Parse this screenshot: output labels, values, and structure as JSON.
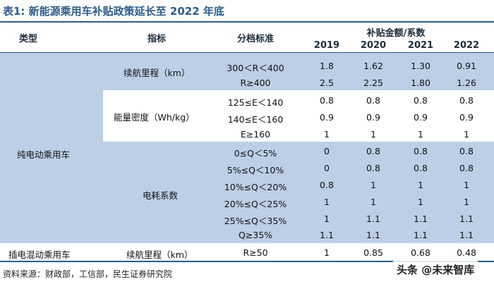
{
  "title": "表1: 新能源乘用车补贴政策延长至 2022 年底",
  "headers": {
    "type": "类型",
    "indicator": "指标",
    "grading": "分档标准",
    "subsidy": "补贴金额/系数",
    "years": [
      "2019",
      "2020",
      "2021",
      "2022"
    ]
  },
  "categories": {
    "bev": "纯电动乘用车",
    "phev": "插电混动乘用车"
  },
  "indicators": {
    "range": "续航里程（km）",
    "energy_density": "能量密度（Wh/kg）",
    "consumption": "电耗系数",
    "phev_range": "续航里程（km）"
  },
  "rows": [
    {
      "grade": "300＜R＜400",
      "values": [
        "1.8",
        "1.62",
        "1.30",
        "0.91"
      ]
    },
    {
      "grade": "R≥400",
      "values": [
        "2.5",
        "2.25",
        "1.80",
        "1.26"
      ]
    },
    {
      "grade": "125≤E＜140",
      "values": [
        "0.8",
        "0.8",
        "0.8",
        "0.8"
      ]
    },
    {
      "grade": "140≤E＜160",
      "values": [
        "0.9",
        "0.9",
        "0.9",
        "0.9"
      ]
    },
    {
      "grade": "E≥160",
      "values": [
        "1",
        "1",
        "1",
        "1"
      ]
    },
    {
      "grade": "0≤Q＜5%",
      "values": [
        "0",
        "0.8",
        "0.8",
        "0.8"
      ]
    },
    {
      "grade": "5%≤Q＜10%",
      "values": [
        "0",
        "0.8",
        "0.8",
        "0.8"
      ]
    },
    {
      "grade": "10%≤Q＜20%",
      "values": [
        "0.8",
        "1",
        "1",
        "1"
      ]
    },
    {
      "grade": "20%≤Q＜25%",
      "values": [
        "1",
        "1",
        "1",
        "1"
      ]
    },
    {
      "grade": "25%≤Q＜35%",
      "values": [
        "1",
        "1.1",
        "1.1",
        "1.1"
      ]
    },
    {
      "grade": "Q≥35%",
      "values": [
        "1.1",
        "1.1",
        "1.1",
        "1.1"
      ]
    },
    {
      "grade": "R≥50",
      "values": [
        "1",
        "0.85",
        "0.68",
        "0.48"
      ]
    }
  ],
  "source": "资料来源：财政部，工信部，民生证券研究院",
  "watermark": "头条 @未来智库"
}
